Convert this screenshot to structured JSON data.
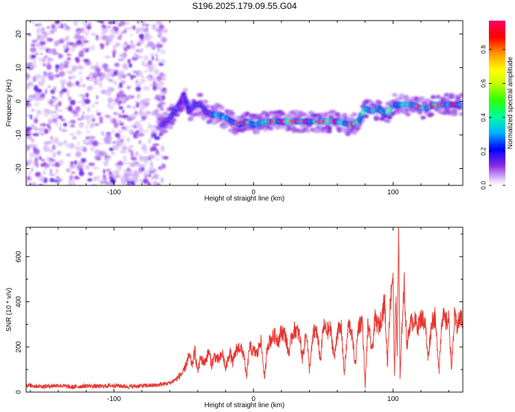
{
  "title": "S196.2025.179.09.55.G04",
  "chart_data": [
    {
      "type": "heatmap",
      "xlabel": "Height of straight line (km)",
      "ylabel": "Frequency (Hz)",
      "xlim": [
        -163,
        150
      ],
      "ylim": [
        -25,
        24
      ],
      "xticks": [
        "-100",
        "0",
        "100"
      ],
      "yticks": [
        "20",
        "10",
        "0",
        "-10",
        "-20"
      ],
      "colorbar": {
        "label": "Normalized spectral amplitude",
        "range": [
          0,
          0.97
        ],
        "ticks": [
          "0.0",
          "0.2",
          "0.4",
          "0.6",
          "0.8"
        ]
      },
      "ridge": {
        "x": [
          -65,
          -60,
          -55,
          -52,
          -50,
          -46,
          -42,
          -38,
          -34,
          -30,
          -25,
          -20,
          -15,
          -10,
          -5,
          0,
          10,
          20,
          30,
          40,
          50,
          60,
          70,
          75,
          78,
          80,
          85,
          90,
          95,
          100,
          110,
          115,
          120,
          125,
          130,
          135,
          140,
          145
        ],
        "y": [
          -7,
          -5,
          -2,
          0,
          2,
          -3,
          -1,
          -1,
          -3,
          -4,
          -4,
          -5,
          -6,
          -7,
          -6,
          -7,
          -6,
          -6,
          -6,
          -6,
          -6,
          -6,
          -7,
          -6,
          -4,
          -2,
          -3,
          -2,
          -4,
          -1,
          -1,
          -1,
          -2,
          -2,
          -1,
          -1,
          -1,
          -1
        ]
      }
    },
    {
      "type": "line",
      "xlabel": "Height of straight line (km)",
      "ylabel": "SNR (10 * v/v)",
      "xlim": [
        -163,
        150
      ],
      "ylim": [
        0,
        730
      ],
      "xticks": [
        "-100",
        "0",
        "100"
      ],
      "yticks": [
        "0",
        "200",
        "400",
        "600"
      ],
      "color": "#e8322d",
      "series": [
        {
          "x": [
            -163,
            -150,
            -140,
            -130,
            -120,
            -110,
            -100,
            -90,
            -80,
            -70,
            -65,
            -60,
            -55,
            -50,
            -48,
            -46,
            -44,
            -42,
            -40,
            -38,
            -35,
            -32,
            -30,
            -28,
            -25,
            -22,
            -20,
            -17,
            -15,
            -12,
            -10,
            -7,
            -5,
            -3,
            0,
            3,
            5,
            8,
            10,
            12,
            15,
            18,
            20,
            23,
            25,
            28,
            30,
            33,
            35,
            38,
            40,
            43,
            45,
            48,
            50,
            53,
            55,
            58,
            60,
            63,
            65,
            68,
            70,
            73,
            75,
            78,
            80,
            82,
            85,
            87,
            90,
            92,
            94,
            96,
            97,
            99,
            100,
            101,
            102,
            103,
            104,
            105,
            107,
            108,
            110,
            112,
            115,
            118,
            120,
            123,
            125,
            128,
            130,
            133,
            135,
            138,
            140,
            142,
            144,
            146,
            148,
            150
          ],
          "y": [
            30,
            25,
            30,
            22,
            28,
            25,
            30,
            24,
            28,
            30,
            35,
            40,
            60,
            90,
            130,
            160,
            120,
            180,
            90,
            150,
            130,
            180,
            120,
            160,
            140,
            170,
            100,
            180,
            130,
            190,
            200,
            170,
            60,
            200,
            180,
            170,
            240,
            60,
            210,
            230,
            250,
            230,
            270,
            250,
            170,
            260,
            280,
            250,
            150,
            270,
            100,
            260,
            280,
            140,
            290,
            270,
            280,
            150,
            270,
            280,
            80,
            300,
            280,
            120,
            290,
            320,
            20,
            300,
            180,
            320,
            290,
            340,
            400,
            120,
            290,
            480,
            530,
            60,
            410,
            180,
            730,
            50,
            380,
            470,
            200,
            300,
            320,
            290,
            330,
            310,
            150,
            320,
            330,
            100,
            340,
            310,
            320,
            100,
            330,
            290,
            330,
            320
          ]
        }
      ]
    }
  ]
}
